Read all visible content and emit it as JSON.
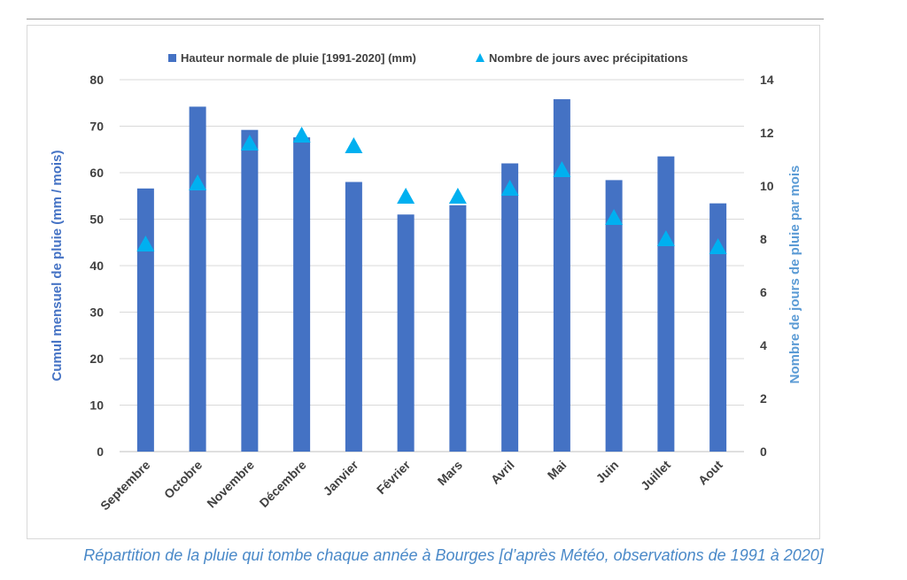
{
  "caption": "Répartition de la pluie qui tombe chaque année à Bourges [d’après Météo, observations de 1991 à 2020]",
  "chart_data": {
    "type": "bar",
    "categories": [
      "Septembre",
      "Octobre",
      "Novembre",
      "Décembre",
      "Janvier",
      "Février",
      "Mars",
      "Avril",
      "Mai",
      "Juin",
      "Juillet",
      "Aout"
    ],
    "series": [
      {
        "name": "Hauteur normale de pluie [1991-2020] (mm)",
        "kind": "bar",
        "axis": "left",
        "color": "#4472c4",
        "values": [
          56.6,
          74.2,
          69.2,
          67.6,
          58.0,
          51.0,
          53.0,
          62.0,
          75.8,
          58.4,
          63.5,
          53.4
        ]
      },
      {
        "name": "Nombre de jours avec précipitations",
        "kind": "triangle-marker",
        "axis": "right",
        "color": "#00b0f0",
        "values": [
          7.8,
          10.1,
          11.6,
          11.9,
          11.5,
          9.6,
          9.6,
          9.9,
          10.6,
          8.8,
          8.0,
          7.7
        ]
      }
    ],
    "ylabel": "Cumul mensuel de pluie (mm / mois)",
    "ylabel_color": "#4472c4",
    "y2label": "Nombre de jours de pluie par mois",
    "y2label_color": "#5b9bd5",
    "ylim": [
      0,
      80
    ],
    "y_ticks": [
      "0",
      "10",
      "20",
      "30",
      "40",
      "50",
      "60",
      "70",
      "80"
    ],
    "y2lim": [
      0,
      14
    ],
    "y2_ticks": [
      "0",
      "2",
      "4",
      "6",
      "8",
      "10",
      "12",
      "14"
    ],
    "grid": true,
    "legend_position": "top-center"
  }
}
